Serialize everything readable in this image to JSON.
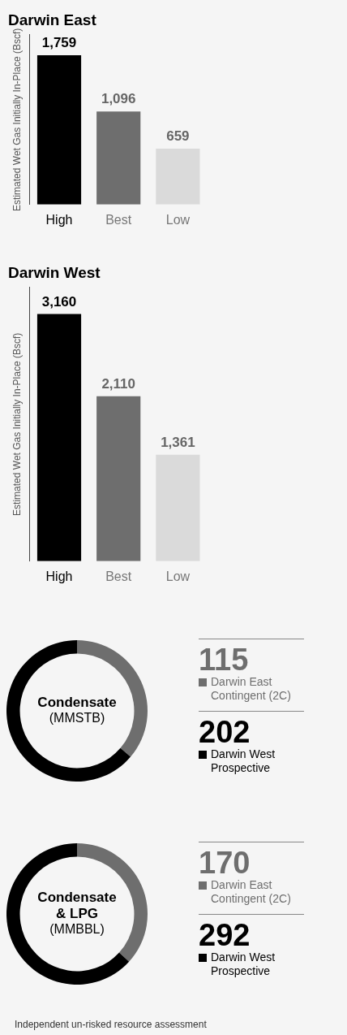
{
  "chart_data": [
    {
      "type": "bar",
      "title": "Darwin East",
      "ylabel": "Estimated Wet Gas Initially In-Place (Bscf)",
      "categories": [
        "High",
        "Best",
        "Low"
      ],
      "values": [
        1759,
        1096,
        659
      ],
      "value_labels": [
        "1,759",
        "1,096",
        "659"
      ],
      "colors": [
        "#000000",
        "#6e6e6e",
        "#dadada"
      ],
      "grid": false
    },
    {
      "type": "bar",
      "title": "Darwin West",
      "ylabel": "Estimated Wet Gas Initially In-Place (Bscf)",
      "categories": [
        "High",
        "Best",
        "Low"
      ],
      "values": [
        3160,
        2110,
        1361
      ],
      "value_labels": [
        "3,160",
        "2,110",
        "1,361"
      ],
      "colors": [
        "#000000",
        "#6e6e6e",
        "#dadada"
      ],
      "grid": false
    },
    {
      "type": "donut",
      "title": "Condensate",
      "subtitle": "(MMSTB)",
      "categories": [
        "Darwin East Contingent (2C)",
        "Darwin West Prospective"
      ],
      "values": [
        115,
        202
      ],
      "colors": [
        "#6e6e6e",
        "#000000"
      ],
      "data_labels": true,
      "legend": "right"
    },
    {
      "type": "donut",
      "title": "Condensate & LPG",
      "subtitle": "(MMBBL)",
      "categories": [
        "Darwin East Contingent (2C)",
        "Darwin West Prospective"
      ],
      "values": [
        170,
        292
      ],
      "colors": [
        "#6e6e6e",
        "#000000"
      ],
      "data_labels": true,
      "legend": "right",
      "annotations": [
        "Independent un-risked resource assessment"
      ]
    }
  ]
}
